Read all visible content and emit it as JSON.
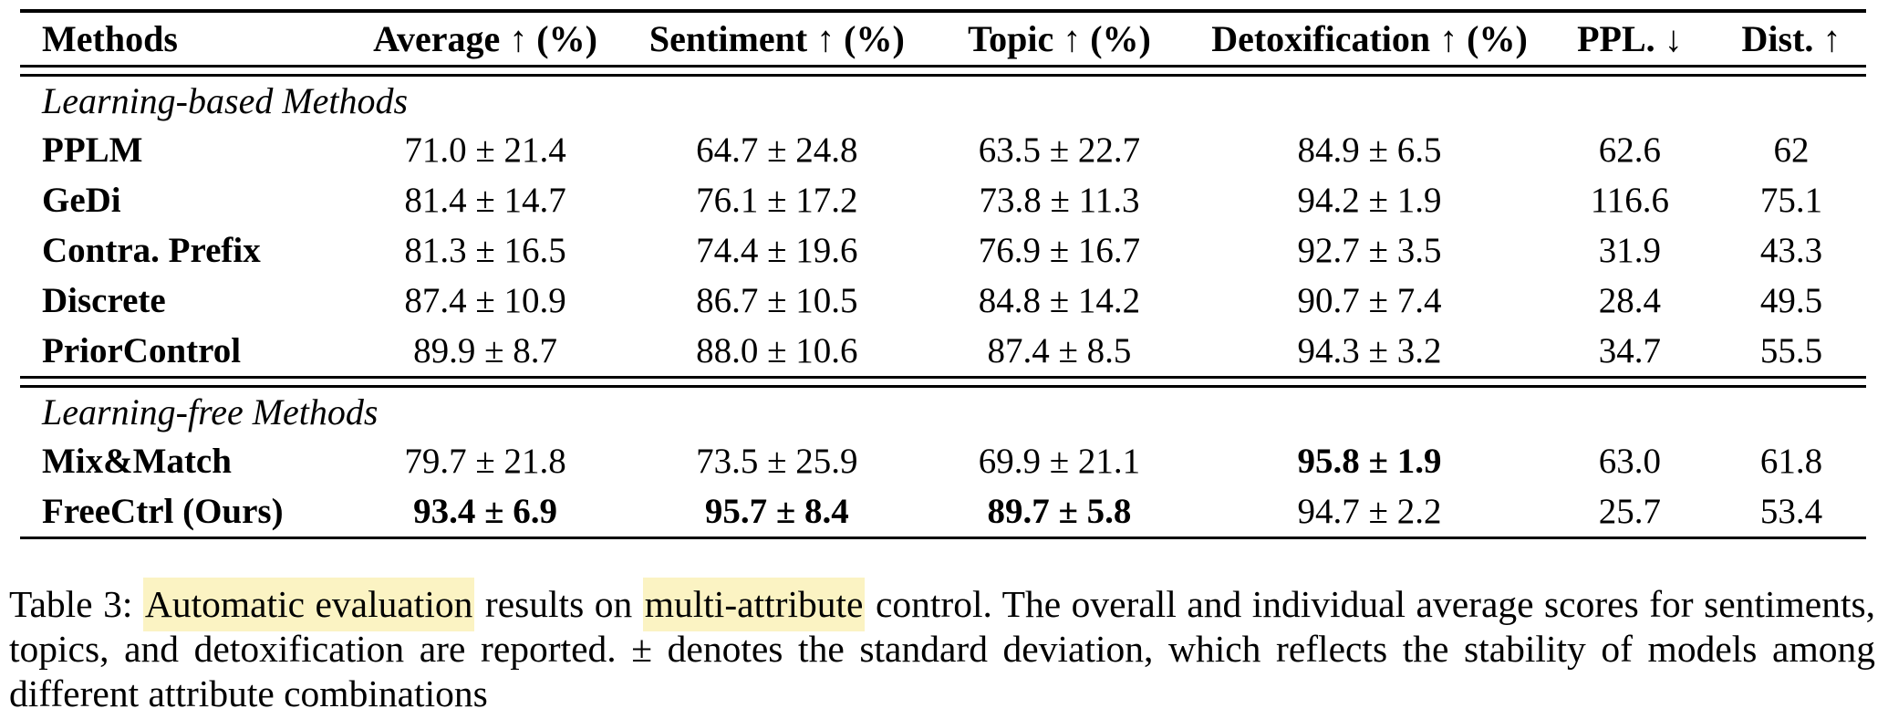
{
  "table": {
    "headers": [
      "Methods",
      "Average ↑ (%)",
      "Sentiment ↑ (%)",
      "Topic ↑ (%)",
      "Detoxification ↑ (%)",
      "PPL. ↓",
      "Dist. ↑"
    ],
    "sections": [
      {
        "title": "Learning-based Methods",
        "rows": [
          {
            "method": "PPLM",
            "cells": [
              "71.0 ± 21.4",
              "64.7 ± 24.8",
              "63.5 ± 22.7",
              "84.9 ± 6.5",
              "62.6",
              "62"
            ],
            "bold": [
              false,
              false,
              false,
              false,
              false,
              false
            ]
          },
          {
            "method": "GeDi",
            "cells": [
              "81.4 ± 14.7",
              "76.1 ± 17.2",
              "73.8 ± 11.3",
              "94.2 ± 1.9",
              "116.6",
              "75.1"
            ],
            "bold": [
              false,
              false,
              false,
              false,
              false,
              false
            ]
          },
          {
            "method": "Contra. Prefix",
            "cells": [
              "81.3 ± 16.5",
              "74.4 ± 19.6",
              "76.9 ± 16.7",
              "92.7 ± 3.5",
              "31.9",
              "43.3"
            ],
            "bold": [
              false,
              false,
              false,
              false,
              false,
              false
            ]
          },
          {
            "method": "Discrete",
            "cells": [
              "87.4 ± 10.9",
              "86.7 ± 10.5",
              "84.8 ± 14.2",
              "90.7 ± 7.4",
              "28.4",
              "49.5"
            ],
            "bold": [
              false,
              false,
              false,
              false,
              false,
              false
            ]
          },
          {
            "method": "PriorControl",
            "cells": [
              "89.9 ± 8.7",
              "88.0 ± 10.6",
              "87.4 ± 8.5",
              "94.3 ± 3.2",
              "34.7",
              "55.5"
            ],
            "bold": [
              false,
              false,
              false,
              false,
              false,
              false
            ]
          }
        ]
      },
      {
        "title": "Learning-free Methods",
        "rows": [
          {
            "method": "Mix&Match",
            "cells": [
              "79.7 ± 21.8",
              "73.5 ± 25.9",
              "69.9 ± 21.1",
              "95.8 ± 1.9",
              "63.0",
              "61.8"
            ],
            "bold": [
              false,
              false,
              false,
              true,
              false,
              false
            ]
          },
          {
            "method": "FreeCtrl (Ours)",
            "cells": [
              "93.4 ± 6.9",
              "95.7 ± 8.4",
              "89.7 ± 5.8",
              "94.7 ± 2.2",
              "25.7",
              "53.4"
            ],
            "bold": [
              true,
              true,
              true,
              false,
              false,
              false
            ]
          }
        ]
      }
    ]
  },
  "caption": {
    "segments": [
      {
        "text": "Table 3: ",
        "highlight": false
      },
      {
        "text": "Automatic evaluation",
        "highlight": true
      },
      {
        "text": " results on ",
        "highlight": false
      },
      {
        "text": "multi-attribute",
        "highlight": true
      },
      {
        "text": " control. The overall and individual average scores for sentiments, topics, and detoxification are reported. ± denotes the standard deviation, which reflects the stability of models among different attribute combinations",
        "highlight": false
      }
    ],
    "highlight_color": "#fbf3c3"
  }
}
